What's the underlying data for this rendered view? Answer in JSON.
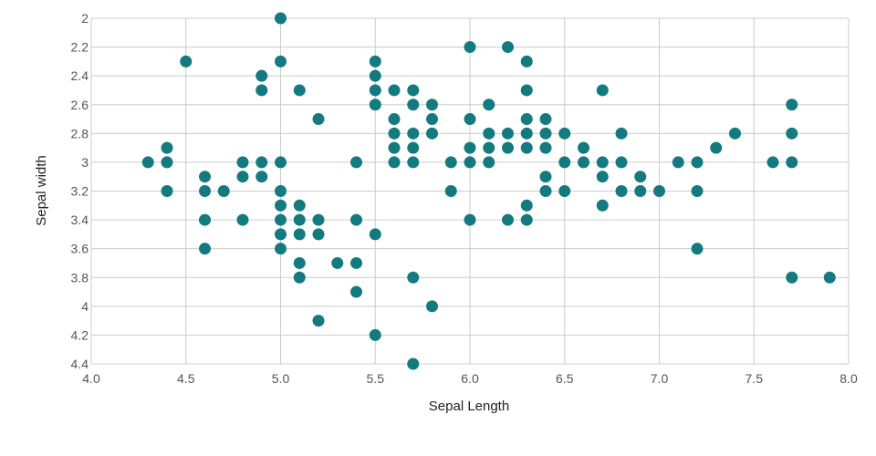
{
  "chart_data": {
    "type": "scatter",
    "title": "",
    "xlabel": "Sepal Length",
    "ylabel": "Sepal width",
    "xlim": [
      4.0,
      8.0
    ],
    "ylim": [
      2.0,
      4.4
    ],
    "y_axis_inverted": true,
    "x_ticks": [
      "4.0",
      "4.5",
      "5.0",
      "5.5",
      "6.0",
      "6.5",
      "7.0",
      "7.5",
      "8.0"
    ],
    "y_ticks": [
      "2",
      "2.2",
      "2.4",
      "2.6",
      "2.8",
      "3",
      "3.2",
      "3.4",
      "3.6",
      "3.8",
      "4",
      "4.2",
      "4.4"
    ],
    "grid": true,
    "point_color": "#137a7f",
    "grid_color": "#cccccc",
    "points": [
      [
        5.0,
        2.0
      ],
      [
        4.5,
        2.3
      ],
      [
        5.0,
        2.3
      ],
      [
        5.5,
        2.3
      ],
      [
        6.0,
        2.2
      ],
      [
        6.2,
        2.2
      ],
      [
        6.3,
        2.3
      ],
      [
        4.9,
        2.4
      ],
      [
        5.5,
        2.4
      ],
      [
        4.9,
        2.5
      ],
      [
        5.1,
        2.5
      ],
      [
        5.5,
        2.5
      ],
      [
        5.6,
        2.5
      ],
      [
        5.7,
        2.5
      ],
      [
        6.3,
        2.5
      ],
      [
        6.7,
        2.5
      ],
      [
        5.5,
        2.6
      ],
      [
        5.7,
        2.6
      ],
      [
        5.8,
        2.6
      ],
      [
        6.1,
        2.6
      ],
      [
        7.7,
        2.6
      ],
      [
        5.2,
        2.7
      ],
      [
        5.6,
        2.7
      ],
      [
        5.8,
        2.7
      ],
      [
        6.0,
        2.7
      ],
      [
        6.3,
        2.7
      ],
      [
        6.4,
        2.7
      ],
      [
        5.6,
        2.8
      ],
      [
        5.7,
        2.8
      ],
      [
        5.8,
        2.8
      ],
      [
        6.1,
        2.8
      ],
      [
        6.2,
        2.8
      ],
      [
        6.3,
        2.8
      ],
      [
        6.4,
        2.8
      ],
      [
        6.5,
        2.8
      ],
      [
        6.8,
        2.8
      ],
      [
        7.4,
        2.8
      ],
      [
        7.7,
        2.8
      ],
      [
        4.4,
        2.9
      ],
      [
        5.6,
        2.9
      ],
      [
        5.7,
        2.9
      ],
      [
        6.0,
        2.9
      ],
      [
        6.1,
        2.9
      ],
      [
        6.2,
        2.9
      ],
      [
        6.3,
        2.9
      ],
      [
        6.4,
        2.9
      ],
      [
        6.6,
        2.9
      ],
      [
        7.3,
        2.9
      ],
      [
        4.3,
        3.0
      ],
      [
        4.4,
        3.0
      ],
      [
        4.8,
        3.0
      ],
      [
        4.9,
        3.0
      ],
      [
        5.0,
        3.0
      ],
      [
        5.4,
        3.0
      ],
      [
        5.6,
        3.0
      ],
      [
        5.7,
        3.0
      ],
      [
        5.9,
        3.0
      ],
      [
        6.0,
        3.0
      ],
      [
        6.1,
        3.0
      ],
      [
        6.5,
        3.0
      ],
      [
        6.6,
        3.0
      ],
      [
        6.7,
        3.0
      ],
      [
        6.8,
        3.0
      ],
      [
        7.1,
        3.0
      ],
      [
        7.2,
        3.0
      ],
      [
        7.6,
        3.0
      ],
      [
        7.7,
        3.0
      ],
      [
        4.6,
        3.1
      ],
      [
        4.8,
        3.1
      ],
      [
        4.9,
        3.1
      ],
      [
        6.4,
        3.1
      ],
      [
        6.7,
        3.1
      ],
      [
        6.9,
        3.1
      ],
      [
        4.4,
        3.2
      ],
      [
        4.6,
        3.2
      ],
      [
        4.7,
        3.2
      ],
      [
        5.0,
        3.2
      ],
      [
        5.9,
        3.2
      ],
      [
        6.4,
        3.2
      ],
      [
        6.5,
        3.2
      ],
      [
        6.8,
        3.2
      ],
      [
        6.9,
        3.2
      ],
      [
        7.0,
        3.2
      ],
      [
        7.2,
        3.2
      ],
      [
        5.0,
        3.3
      ],
      [
        5.1,
        3.3
      ],
      [
        6.3,
        3.3
      ],
      [
        6.7,
        3.3
      ],
      [
        4.6,
        3.4
      ],
      [
        4.8,
        3.4
      ],
      [
        5.0,
        3.4
      ],
      [
        5.1,
        3.4
      ],
      [
        5.2,
        3.4
      ],
      [
        5.4,
        3.4
      ],
      [
        6.0,
        3.4
      ],
      [
        6.2,
        3.4
      ],
      [
        6.3,
        3.4
      ],
      [
        5.0,
        3.5
      ],
      [
        5.1,
        3.5
      ],
      [
        5.2,
        3.5
      ],
      [
        5.5,
        3.5
      ],
      [
        4.6,
        3.6
      ],
      [
        5.0,
        3.6
      ],
      [
        7.2,
        3.6
      ],
      [
        5.1,
        3.7
      ],
      [
        5.3,
        3.7
      ],
      [
        5.4,
        3.7
      ],
      [
        5.1,
        3.8
      ],
      [
        5.7,
        3.8
      ],
      [
        7.7,
        3.8
      ],
      [
        7.9,
        3.8
      ],
      [
        5.4,
        3.9
      ],
      [
        5.8,
        4.0
      ],
      [
        5.2,
        4.1
      ],
      [
        5.5,
        4.2
      ],
      [
        5.7,
        4.4
      ]
    ]
  }
}
